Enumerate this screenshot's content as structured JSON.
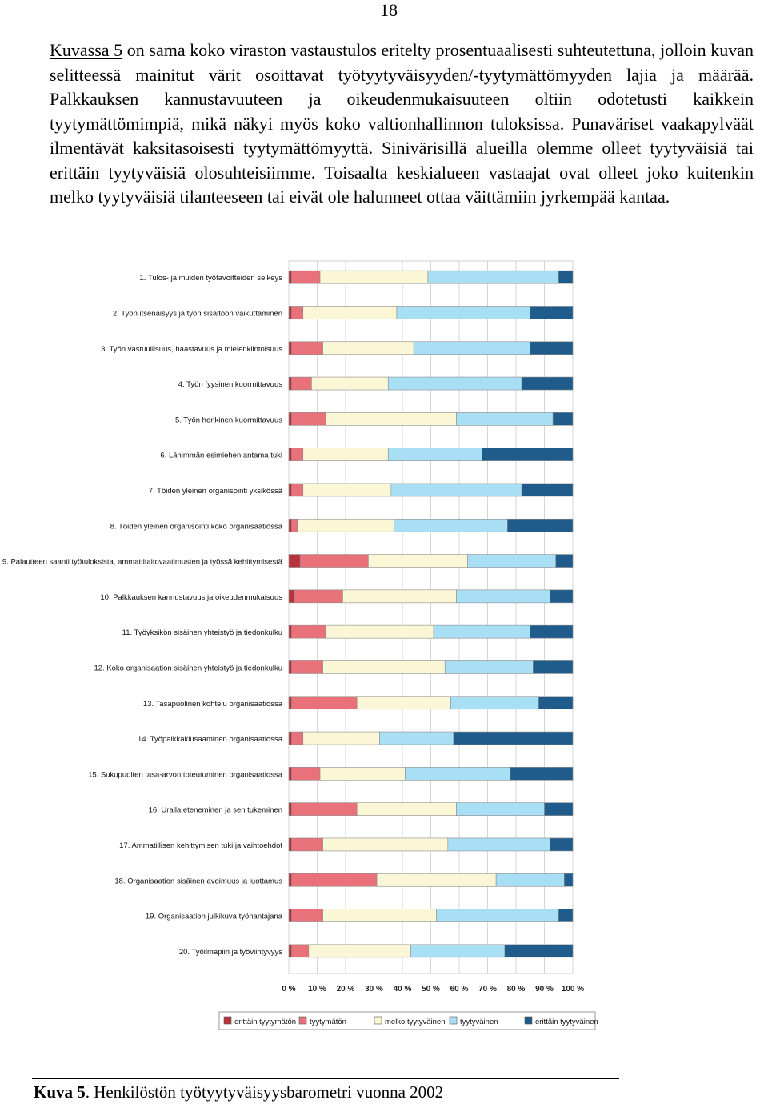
{
  "page_number": "18",
  "paragraph": {
    "ref_text": "Kuvassa 5",
    "body": " on sama koko viraston vastaustulos eritelty prosentuaalisesti suhteutettuna, jolloin kuvan selitteessä mainitut värit osoittavat työtyytyväisyyden/-tyytymättömyyden lajia ja määrää. Palkkauksen kannustavuuteen ja oikeudenmukaisuuteen oltiin odotetusti kaikkein tyytymättömimpiä, mikä näkyi myös koko valtionhallinnon tuloksissa. Punaväriset vaakapylväät ilmentävät kaksitasoisesti tyytymättömyyttä. Sinivärisillä alueilla olemme olleet tyytyväisiä tai erittäin tyytyväisiä olosuhteisiimme. Toisaalta keskialueen vastaajat ovat olleet joko kuitenkin melko tyytyväisiä tilanteeseen tai eivät ole halunneet ottaa väittämiin jyrkempää kantaa."
  },
  "colors": {
    "erittain_tyytymaton": "#b8323c",
    "tyytymaton": "#e8717a",
    "melko_tyytyvainen": "#fbf6d6",
    "tyytyvainen": "#a9dff4",
    "erittain_tyytyvainen": "#1f5c8c"
  },
  "chart_data": {
    "type": "bar",
    "orientation": "horizontal",
    "stacked": "percent",
    "categories": [
      "1. Tulos- ja muiden työtavoitteiden selkeys",
      "2. Työn itsenäisyys ja työn sisältöön vaikuttaminen",
      "3. Työn vastuullisuus, haastavuus ja mielenkiintoisuus",
      "4. Työn fyysinen kuormittavuus",
      "5. Työn henkinen kuormittavuus",
      "6. Lähimmän esimiehen antama tuki",
      "7. Töiden yleinen organisointi yksikössä",
      "8. Töiden yleinen organisointi koko organisaatiossa",
      "9. Palautteen saanti työtuloksista, ammattitaitovaatimusten ja työssä kehittymisestä",
      "10. Palkkauksen kannustavuus ja oikeudenmukaisuus",
      "11. Työyksikön sisäinen yhteistyö ja tiedonkulku",
      "12. Koko organisaation sisäinen yhteistyö ja tiedonkulku",
      "13. Tasapuolinen kohtelu organisaatiossa",
      "14. Työpaikkakiusaaminen organisaatiossa",
      "15. Sukupuolten tasa-arvon toteutuminen organisaatiossa",
      "16. Uralla eteneminen ja sen tukeminen",
      "17. Ammatillisen kehittymisen tuki ja vaihtoehdot",
      "18. Organisaation sisäinen avoimuus ja luottamus",
      "19. Organisaation julkikuva työnantajana",
      "20. Työilmapiiri ja työviihtyvyys"
    ],
    "series": [
      {
        "name": "erittäin tyytymätön",
        "values": [
          1,
          1,
          1,
          1,
          1,
          1,
          1,
          1,
          4,
          2,
          1,
          1,
          1,
          1,
          1,
          1,
          1,
          1,
          1,
          1
        ]
      },
      {
        "name": "tyytymätön",
        "values": [
          10,
          4,
          11,
          7,
          12,
          4,
          4,
          2,
          24,
          17,
          12,
          11,
          23,
          4,
          10,
          23,
          11,
          30,
          11,
          6
        ]
      },
      {
        "name": "melko tyytyväinen",
        "values": [
          38,
          33,
          32,
          27,
          46,
          30,
          31,
          34,
          35,
          40,
          38,
          43,
          33,
          27,
          30,
          35,
          44,
          42,
          40,
          36
        ]
      },
      {
        "name": "tyytyväinen",
        "values": [
          46,
          47,
          41,
          47,
          34,
          33,
          46,
          40,
          31,
          33,
          34,
          31,
          31,
          26,
          37,
          31,
          36,
          24,
          43,
          33
        ]
      },
      {
        "name": "erittäin tyytyväinen",
        "values": [
          5,
          15,
          15,
          18,
          7,
          32,
          18,
          23,
          6,
          8,
          15,
          14,
          12,
          42,
          22,
          10,
          8,
          3,
          5,
          24
        ]
      }
    ],
    "xlim": [
      0,
      100
    ],
    "x_ticks": [
      "0 %",
      "10 %",
      "20 %",
      "30 %",
      "40 %",
      "50 %",
      "60 %",
      "70 %",
      "80 %",
      "90 %",
      "100 %"
    ],
    "grid": true,
    "legend_position": "bottom"
  },
  "caption": {
    "lead": "Kuva 5",
    "text": ".  Henkilöstön työtyytyväisyysbarometri vuonna 2002"
  }
}
